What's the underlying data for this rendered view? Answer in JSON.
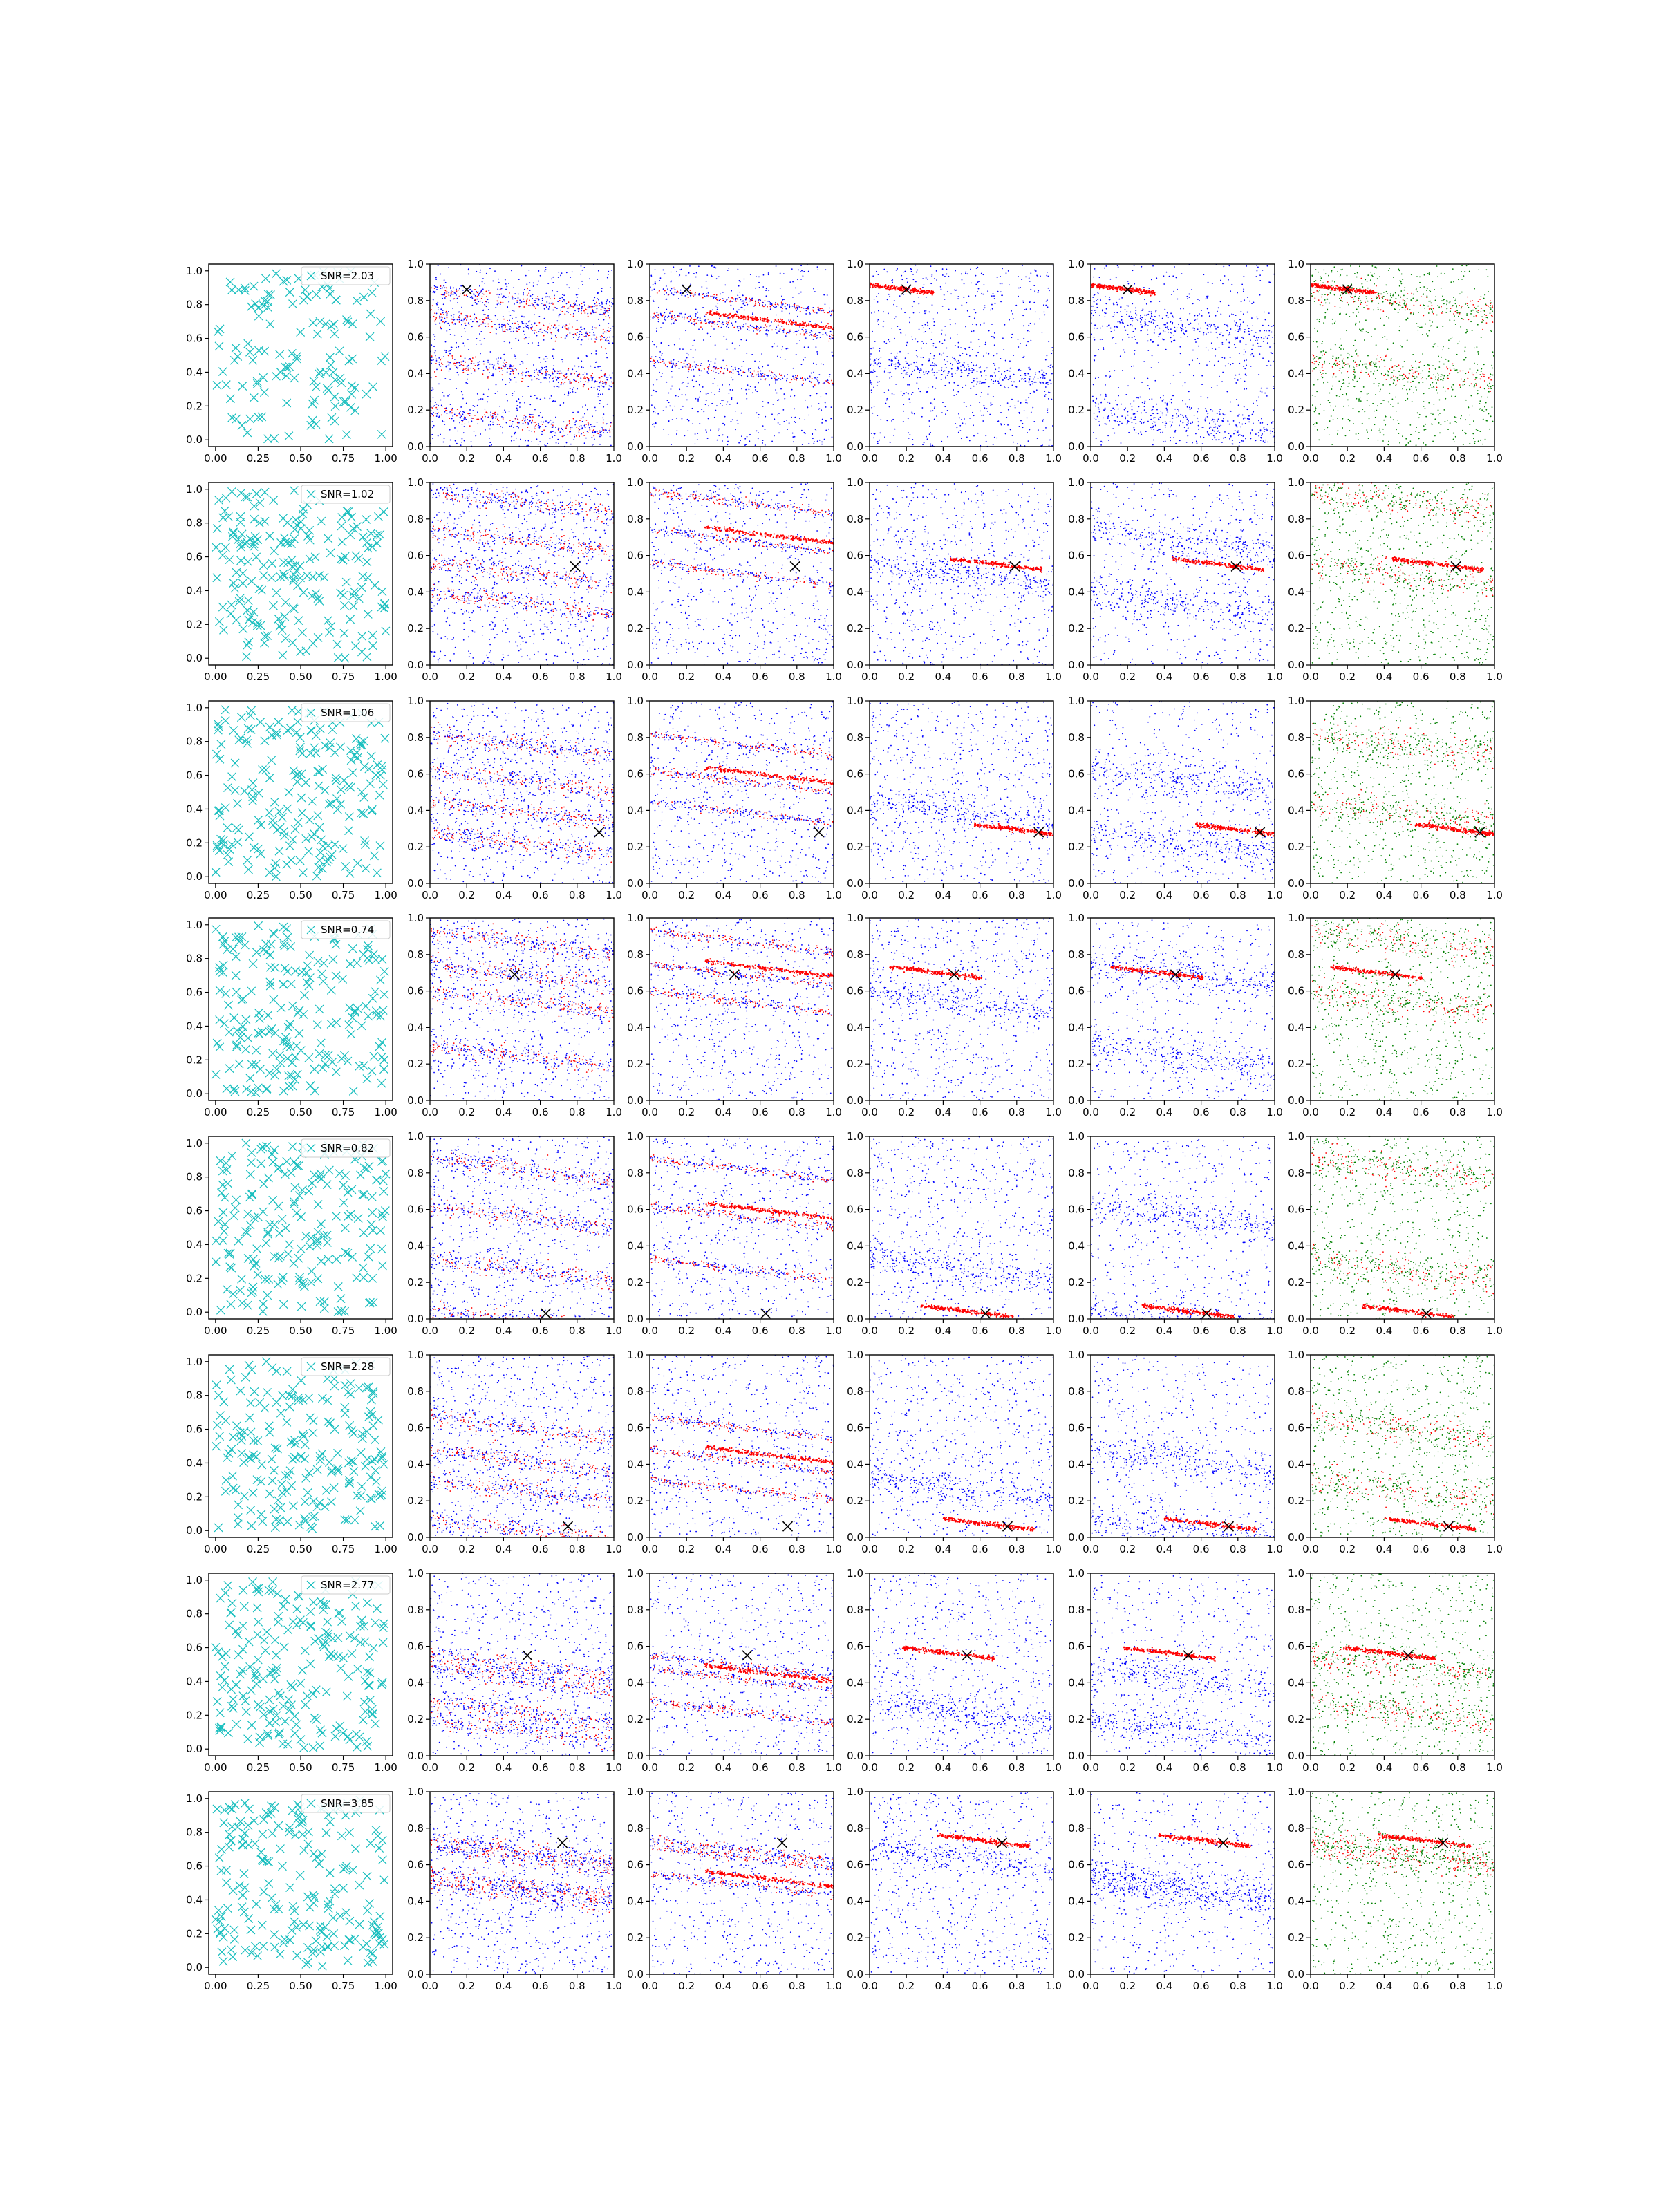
{
  "figure": {
    "rows": 8,
    "cols": 6,
    "colors": {
      "cyan": "#17bebe",
      "red": "#ff0000",
      "blue": "#0000ff",
      "green": "#008000",
      "black": "#000000"
    }
  },
  "axes": {
    "first_column": {
      "xticks": [
        "0.00",
        "0.25",
        "0.50",
        "0.75",
        "1.00"
      ],
      "yticks": [
        "0.0",
        "0.2",
        "0.4",
        "0.6",
        "0.8",
        "1.0"
      ],
      "xlim": [
        -0.04,
        1.04
      ],
      "ylim": [
        -0.04,
        1.04
      ]
    },
    "other_columns": {
      "xticks": [
        "0.0",
        "0.2",
        "0.4",
        "0.6",
        "0.8",
        "1.0"
      ],
      "yticks": [
        "0.0",
        "0.2",
        "0.4",
        "0.6",
        "0.8",
        "1.0"
      ],
      "xlim": [
        0,
        1
      ],
      "ylim": [
        0,
        1
      ]
    }
  },
  "chart_data": {
    "type": "scatter",
    "marker_x": [
      0.2,
      0.79,
      0.92,
      0.46,
      0.63,
      0.75,
      0.53,
      0.72
    ],
    "marker_y": [
      0.86,
      0.54,
      0.28,
      0.69,
      0.03,
      0.06,
      0.55,
      0.72
    ],
    "rows": [
      {
        "snr_label": "SNR=2.03",
        "bands": [
          0.86,
          0.72,
          0.47,
          0.2
        ]
      },
      {
        "snr_label": "SNR=1.02",
        "bands": [
          0.95,
          0.74,
          0.56,
          0.4
        ]
      },
      {
        "snr_label": "SNR=1.06",
        "bands": [
          0.82,
          0.62,
          0.45,
          0.28
        ]
      },
      {
        "snr_label": "SNR=0.74",
        "bands": [
          0.93,
          0.75,
          0.6,
          0.3
        ]
      },
      {
        "snr_label": "SNR=0.82",
        "bands": [
          0.88,
          0.62,
          0.33,
          0.05
        ]
      },
      {
        "snr_label": "SNR=2.28",
        "bands": [
          0.66,
          0.48,
          0.32,
          0.1
        ]
      },
      {
        "snr_label": "SNR=2.77",
        "bands": [
          0.55,
          0.48,
          0.3,
          0.2
        ]
      },
      {
        "snr_label": "SNR=3.85",
        "bands": [
          0.74,
          0.55,
          0.7,
          0.5
        ]
      }
    ]
  }
}
